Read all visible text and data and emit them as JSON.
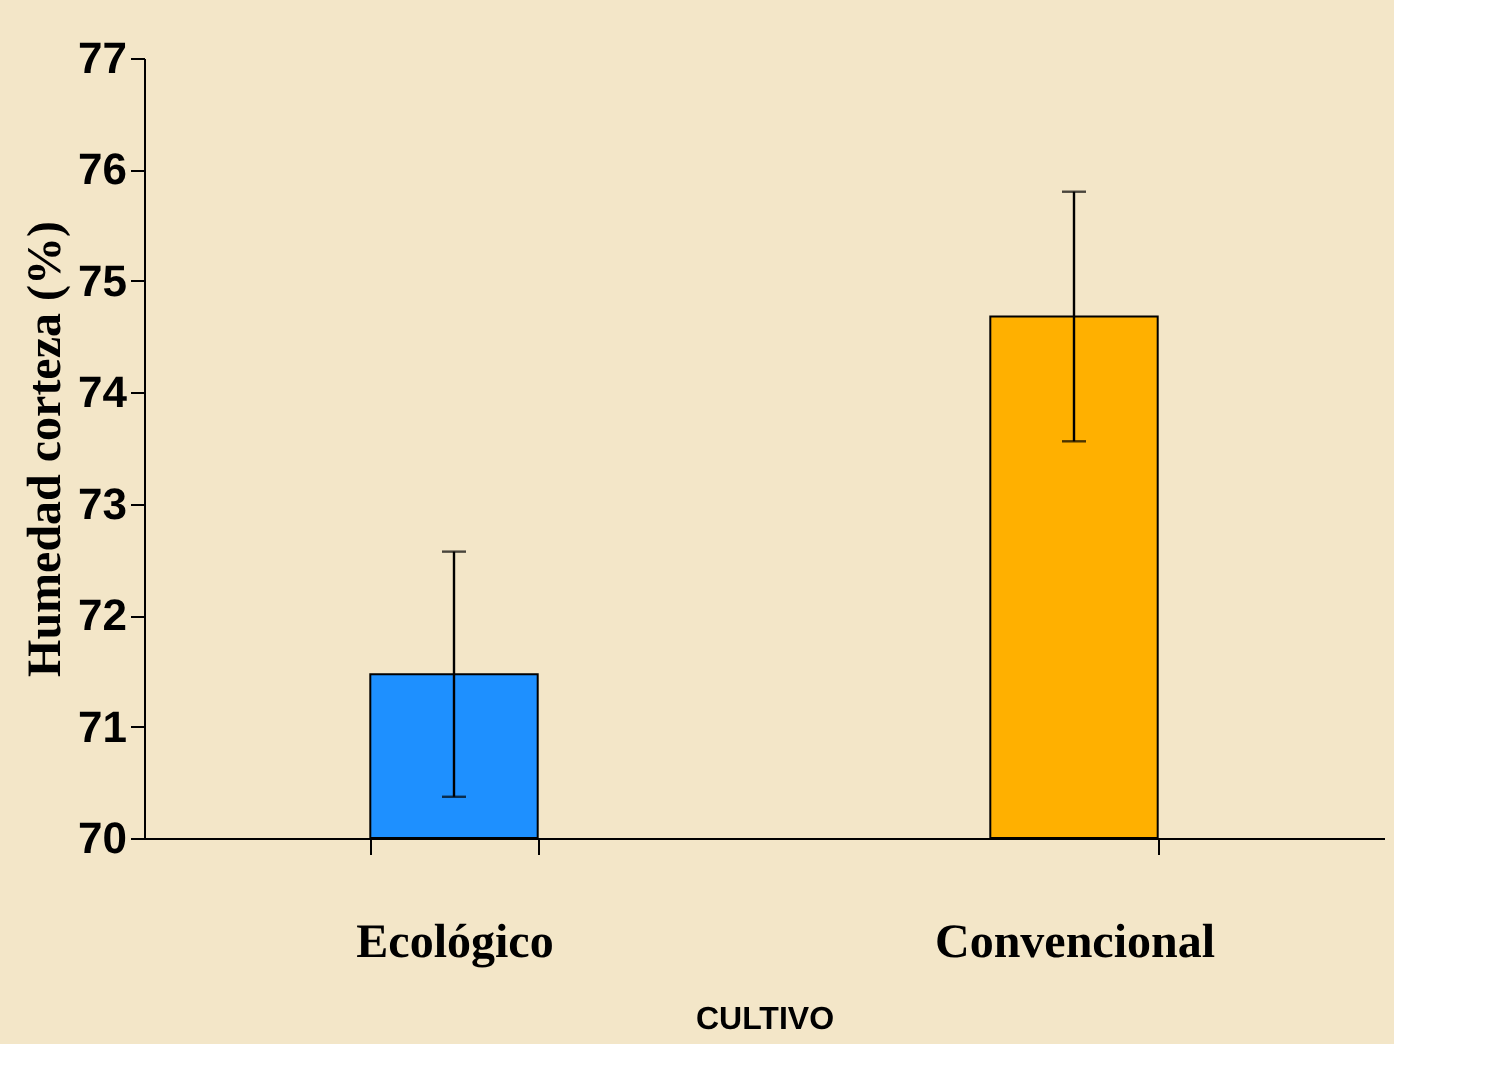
{
  "chart_data": {
    "type": "bar",
    "xlabel": "CULTIVO",
    "ylabel": "Humedad corteza (%)",
    "categories": [
      "Ecológico",
      "Convencional"
    ],
    "values": [
      71.47,
      74.68
    ],
    "errors": [
      1.1,
      1.12
    ],
    "colors": [
      "#1e90ff",
      "#ffb000"
    ],
    "ylim": [
      70,
      77
    ],
    "yticks": [
      70,
      71,
      72,
      73,
      74,
      75,
      76,
      77
    ],
    "grid": false,
    "legend": false
  }
}
